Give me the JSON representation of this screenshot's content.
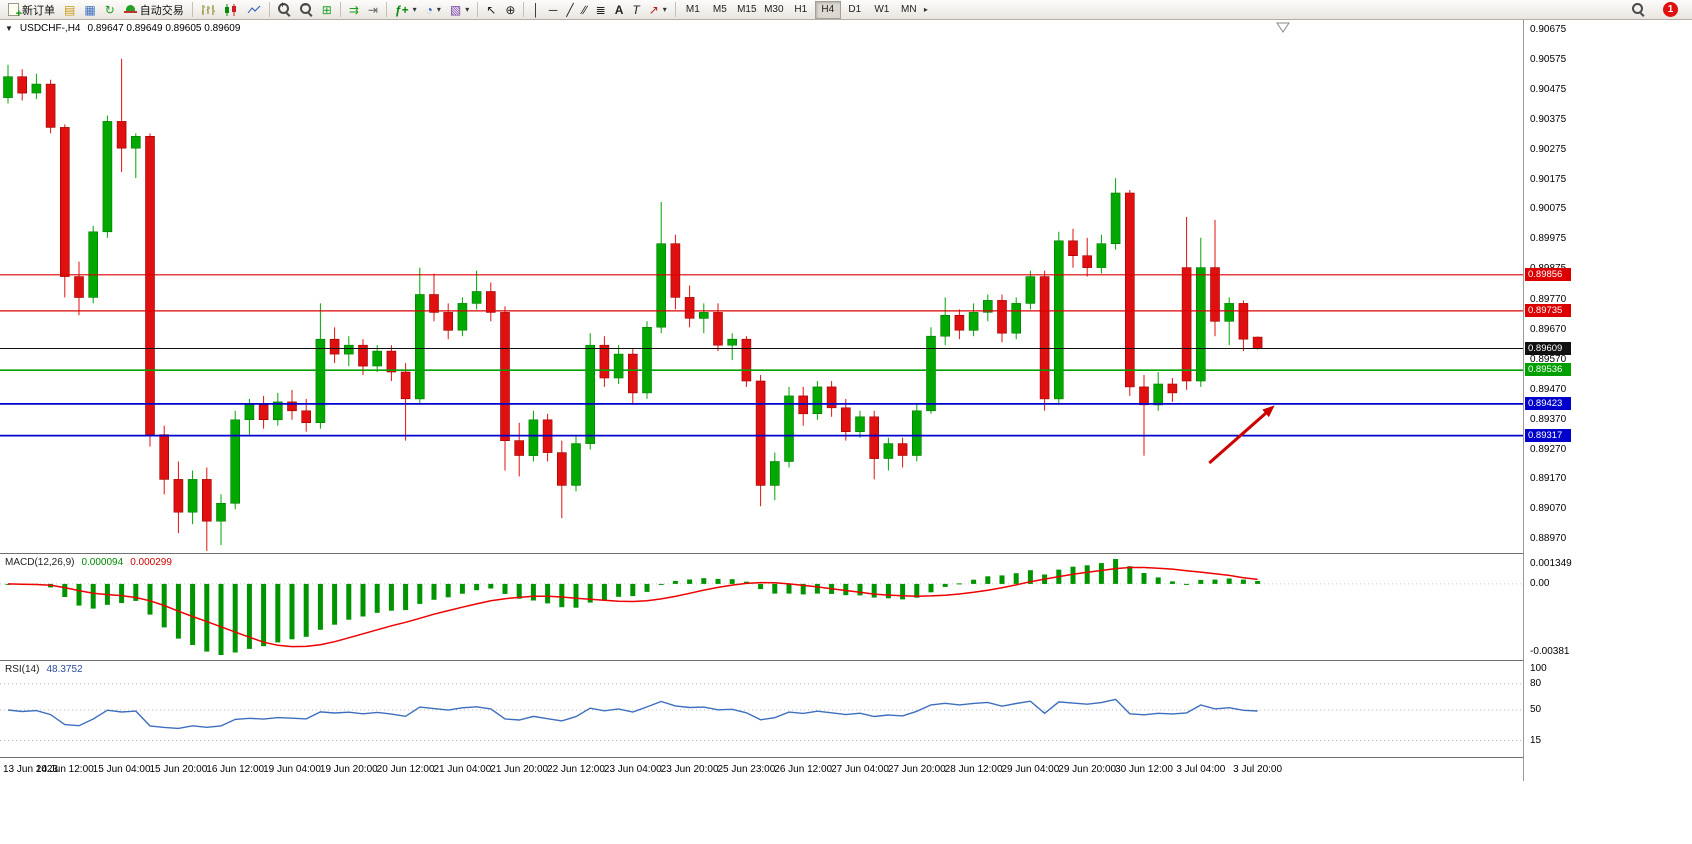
{
  "window": {
    "badge_count": "1"
  },
  "toolbar": {
    "new_order_label": "新订单",
    "autotrade_label": "自动交易",
    "timeframes": [
      "M1",
      "M5",
      "M15",
      "M30",
      "H1",
      "H4",
      "D1",
      "W1",
      "MN"
    ],
    "active_timeframe": "H4",
    "icons": {
      "charts": "▤",
      "profiles": "▦",
      "refresh": "↻",
      "tile": "⊞",
      "autoscroll": "⇉",
      "shift": "⇥",
      "indicators": "ƒ+",
      "clock": "◔",
      "templates": "▧",
      "cursor": "↖",
      "crosshair": "⊕",
      "vline": "│",
      "hline": "─",
      "trendline": "╱",
      "channel": "∕∕",
      "fibo": "≣",
      "text": "A",
      "label": "T",
      "arrows": "↗",
      "caret": "▾",
      "plus": "+",
      "minus": "−",
      "overflow": "▸"
    }
  },
  "chart": {
    "collapse_glyph": "▼",
    "symbol_period": "USDCHF-,H4",
    "ohlc_text": "0.89647 0.89649 0.89605 0.89609",
    "price_max": 0.9071,
    "price_min": 0.8892,
    "price_axis": [
      "0.90675",
      "0.90575",
      "0.90475",
      "0.90375",
      "0.90275",
      "0.90175",
      "0.90075",
      "0.89975",
      "0.89875",
      "0.89770",
      "0.89670",
      "0.89570",
      "0.89470",
      "0.89370",
      "0.89270",
      "0.89170",
      "0.89070",
      "0.88970"
    ],
    "hlines": [
      {
        "name": "resistance-line-1",
        "price": 0.89856,
        "color": "#dd0000",
        "width": 1.2,
        "label": "0.89856"
      },
      {
        "name": "resistance-line-2",
        "price": 0.89735,
        "color": "#dd0000",
        "width": 1.2,
        "label": "0.89735"
      },
      {
        "name": "current-price-line",
        "price": 0.89609,
        "color": "#111111",
        "width": 1,
        "label": "0.89609"
      },
      {
        "name": "support-line-green",
        "price": 0.89536,
        "color": "#00a000",
        "width": 1.6,
        "label": "0.89536"
      },
      {
        "name": "support-line-blue-1",
        "price": 0.89423,
        "color": "#0000cc",
        "width": 1.8,
        "label": "0.89423"
      },
      {
        "name": "support-line-blue-2",
        "price": 0.89317,
        "color": "#0000cc",
        "width": 1.8,
        "label": "0.89317"
      }
    ],
    "arrow": {
      "from_bar": 84.6,
      "from_price": 0.89225,
      "to_bar": 89.2,
      "to_price": 0.89418,
      "color": "#cc0000"
    },
    "macd_axis": [
      "0.001349",
      "0.00",
      "-0.00381"
    ],
    "rsi_axis": [
      "100",
      "80",
      "50",
      "15"
    ],
    "rsi_levels": [
      80,
      50,
      15
    ]
  },
  "chart_data": {
    "type": "candlestick",
    "title": "USDCHF H4",
    "symbol": "USDCHF",
    "timeframe": "H4",
    "x_label_every": 4,
    "x_labels": [
      "13 Jun 2023",
      "14 Jun 12:00",
      "15 Jun 04:00",
      "15 Jun 20:00",
      "16 Jun 12:00",
      "19 Jun 04:00",
      "19 Jun 20:00",
      "20 Jun 12:00",
      "21 Jun 04:00",
      "21 Jun 20:00",
      "22 Jun 12:00",
      "23 Jun 04:00",
      "23 Jun 20:00",
      "25 Jun 23:00",
      "26 Jun 12:00",
      "27 Jun 04:00",
      "27 Jun 20:00",
      "28 Jun 12:00",
      "29 Jun 04:00",
      "29 Jun 20:00",
      "30 Jun 12:00",
      "3 Jul 04:00",
      "3 Jul 20:00"
    ],
    "ohlc": [
      [
        0.9045,
        0.9056,
        0.9043,
        0.9052
      ],
      [
        0.9052,
        0.90545,
        0.9044,
        0.90465
      ],
      [
        0.90465,
        0.9053,
        0.90445,
        0.90495
      ],
      [
        0.90495,
        0.9051,
        0.9033,
        0.9035
      ],
      [
        0.9035,
        0.9036,
        0.8978,
        0.8985
      ],
      [
        0.8985,
        0.899,
        0.8972,
        0.8978
      ],
      [
        0.8978,
        0.9002,
        0.8976,
        0.9
      ],
      [
        0.9,
        0.9039,
        0.8998,
        0.9037
      ],
      [
        0.9037,
        0.9058,
        0.902,
        0.9028
      ],
      [
        0.9028,
        0.9033,
        0.9018,
        0.9032
      ],
      [
        0.9032,
        0.9033,
        0.8928,
        0.8932
      ],
      [
        0.8932,
        0.8935,
        0.8912,
        0.8917
      ],
      [
        0.8917,
        0.8923,
        0.8899,
        0.8906
      ],
      [
        0.8906,
        0.892,
        0.8902,
        0.8917
      ],
      [
        0.8917,
        0.8921,
        0.8893,
        0.8903
      ],
      [
        0.8903,
        0.8912,
        0.8895,
        0.8909
      ],
      [
        0.8909,
        0.894,
        0.8907,
        0.8937
      ],
      [
        0.8937,
        0.8944,
        0.8932,
        0.8942
      ],
      [
        0.8942,
        0.8945,
        0.8934,
        0.8937
      ],
      [
        0.8937,
        0.8946,
        0.8935,
        0.8943
      ],
      [
        0.8943,
        0.8947,
        0.8937,
        0.894
      ],
      [
        0.894,
        0.8944,
        0.8933,
        0.8936
      ],
      [
        0.8936,
        0.8976,
        0.8934,
        0.8964
      ],
      [
        0.8964,
        0.8968,
        0.8956,
        0.8959
      ],
      [
        0.8959,
        0.8965,
        0.8955,
        0.8962
      ],
      [
        0.8962,
        0.8964,
        0.8952,
        0.8955
      ],
      [
        0.8955,
        0.8962,
        0.8953,
        0.896
      ],
      [
        0.896,
        0.8962,
        0.895,
        0.8953
      ],
      [
        0.8953,
        0.8956,
        0.893,
        0.8944
      ],
      [
        0.8944,
        0.8988,
        0.8942,
        0.8979
      ],
      [
        0.8979,
        0.8986,
        0.897,
        0.8973
      ],
      [
        0.8973,
        0.8976,
        0.8964,
        0.8967
      ],
      [
        0.8967,
        0.8978,
        0.8965,
        0.8976
      ],
      [
        0.8976,
        0.8987,
        0.8974,
        0.898
      ],
      [
        0.898,
        0.8983,
        0.897,
        0.8973
      ],
      [
        0.8973,
        0.8975,
        0.892,
        0.893
      ],
      [
        0.893,
        0.8936,
        0.8918,
        0.8925
      ],
      [
        0.8925,
        0.894,
        0.8923,
        0.8937
      ],
      [
        0.8937,
        0.8939,
        0.8923,
        0.8926
      ],
      [
        0.8926,
        0.893,
        0.8904,
        0.8915
      ],
      [
        0.8915,
        0.8932,
        0.8913,
        0.8929
      ],
      [
        0.8929,
        0.8966,
        0.8927,
        0.8962
      ],
      [
        0.8962,
        0.8965,
        0.8948,
        0.8951
      ],
      [
        0.8951,
        0.8962,
        0.8949,
        0.8959
      ],
      [
        0.8959,
        0.8961,
        0.8942,
        0.8946
      ],
      [
        0.8946,
        0.897,
        0.8944,
        0.8968
      ],
      [
        0.8968,
        0.901,
        0.8966,
        0.8996
      ],
      [
        0.8996,
        0.8999,
        0.8974,
        0.8978
      ],
      [
        0.8978,
        0.8982,
        0.8968,
        0.8971
      ],
      [
        0.8971,
        0.8976,
        0.8966,
        0.8973
      ],
      [
        0.8973,
        0.8976,
        0.896,
        0.8962
      ],
      [
        0.8962,
        0.8966,
        0.8957,
        0.8964
      ],
      [
        0.8964,
        0.8965,
        0.8948,
        0.895
      ],
      [
        0.895,
        0.8952,
        0.8908,
        0.8915
      ],
      [
        0.8915,
        0.8926,
        0.891,
        0.8923
      ],
      [
        0.8923,
        0.8948,
        0.8921,
        0.8945
      ],
      [
        0.8945,
        0.8948,
        0.8935,
        0.8939
      ],
      [
        0.8939,
        0.895,
        0.8937,
        0.8948
      ],
      [
        0.8948,
        0.895,
        0.8938,
        0.8941
      ],
      [
        0.8941,
        0.8944,
        0.893,
        0.8933
      ],
      [
        0.8933,
        0.894,
        0.8931,
        0.8938
      ],
      [
        0.8938,
        0.894,
        0.8917,
        0.8924
      ],
      [
        0.8924,
        0.8931,
        0.892,
        0.8929
      ],
      [
        0.8929,
        0.8931,
        0.8921,
        0.8925
      ],
      [
        0.8925,
        0.8942,
        0.8923,
        0.894
      ],
      [
        0.894,
        0.8968,
        0.8939,
        0.8965
      ],
      [
        0.8965,
        0.8978,
        0.8962,
        0.8972
      ],
      [
        0.8972,
        0.8974,
        0.8964,
        0.8967
      ],
      [
        0.8967,
        0.8976,
        0.8965,
        0.8973
      ],
      [
        0.8973,
        0.8979,
        0.897,
        0.8977
      ],
      [
        0.8977,
        0.8979,
        0.8963,
        0.8966
      ],
      [
        0.8966,
        0.8978,
        0.8964,
        0.8976
      ],
      [
        0.8976,
        0.8987,
        0.8974,
        0.8985
      ],
      [
        0.8985,
        0.8987,
        0.894,
        0.8944
      ],
      [
        0.8944,
        0.9,
        0.8942,
        0.8997
      ],
      [
        0.8997,
        0.9001,
        0.8988,
        0.8992
      ],
      [
        0.8992,
        0.8998,
        0.8985,
        0.8988
      ],
      [
        0.8988,
        0.8999,
        0.8986,
        0.8996
      ],
      [
        0.8996,
        0.9018,
        0.8994,
        0.9013
      ],
      [
        0.9013,
        0.9014,
        0.8945,
        0.8948
      ],
      [
        0.8948,
        0.8952,
        0.8925,
        0.8942
      ],
      [
        0.8942,
        0.8953,
        0.894,
        0.8949
      ],
      [
        0.8949,
        0.8951,
        0.8943,
        0.8946
      ],
      [
        0.8988,
        0.9005,
        0.8947,
        0.895
      ],
      [
        0.895,
        0.8998,
        0.8948,
        0.8988
      ],
      [
        0.8988,
        0.9004,
        0.8965,
        0.897
      ],
      [
        0.897,
        0.8978,
        0.8962,
        0.8976
      ],
      [
        0.8976,
        0.8977,
        0.896,
        0.8964
      ],
      [
        0.89647,
        0.89649,
        0.89605,
        0.89609
      ]
    ],
    "indicators": {
      "macd": {
        "name": "MACD(12,26,9)",
        "params": [
          12,
          26,
          9
        ],
        "value_main": "0.000094",
        "value_signal": "0.000299",
        "axis_labels": [
          "0.001349",
          "0.00",
          "-0.00381"
        ]
      },
      "rsi": {
        "name": "RSI(14)",
        "period": 14,
        "value": "48.3752",
        "axis_labels": [
          "100",
          "80",
          "50",
          "15"
        ],
        "levels": [
          80,
          50,
          15
        ]
      }
    }
  },
  "colors": {
    "bull": "#00a800",
    "bull_edge": "#007a00",
    "bear": "#e01010",
    "bear_edge": "#9c0000",
    "macd_hist": "#009400",
    "macd_signal": "#ee0000",
    "rsi_line": "#3e6fbe",
    "arrow": "#cc0000"
  }
}
